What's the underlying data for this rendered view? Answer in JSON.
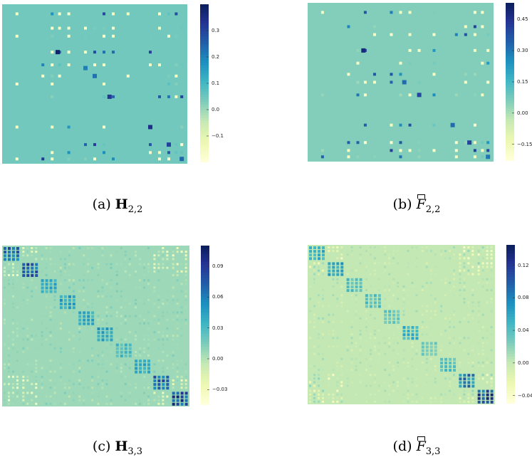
{
  "chart_data": [
    {
      "type": "heatmap",
      "panel": "a",
      "caption": {
        "prefix": "(a)",
        "symbol": "H",
        "subscript": "2,2",
        "hat": false
      },
      "colorbar_ticks": [
        0.3,
        0.2,
        0.1,
        0.0,
        -0.1
      ],
      "colorbar_tick_labels": [
        "0.3",
        "0.2",
        "0.1",
        "0.0",
        "−0.1"
      ],
      "colorbar_range": [
        -0.2,
        0.4
      ],
      "background_value": 0.04,
      "colormap": [
        "#ffffd9",
        "#edf8b1",
        "#c7e9b4",
        "#7fcdbb",
        "#41b6c4",
        "#1d91c0",
        "#225ea8",
        "#253494",
        "#081d58"
      ]
    },
    {
      "type": "heatmap",
      "panel": "b",
      "caption": {
        "prefix": "(b)",
        "symbol": "F",
        "subscript": "2,2",
        "hat": true
      },
      "colorbar_ticks": [
        0.45,
        0.3,
        0.15,
        0.0,
        -0.15
      ],
      "colorbar_tick_labels": [
        "0.45",
        "0.30",
        "0.15",
        "0.00",
        "−0.15"
      ],
      "colorbar_range": [
        -0.23,
        0.53
      ],
      "background_value": 0.05,
      "colormap": [
        "#ffffd9",
        "#edf8b1",
        "#c7e9b4",
        "#7fcdbb",
        "#41b6c4",
        "#1d91c0",
        "#225ea8",
        "#253494",
        "#081d58"
      ]
    },
    {
      "type": "heatmap",
      "panel": "c",
      "caption": {
        "prefix": "(c)",
        "symbol": "H",
        "subscript": "3,3",
        "hat": false
      },
      "colorbar_ticks": [
        0.09,
        0.06,
        0.03,
        0.0,
        -0.03
      ],
      "colorbar_tick_labels": [
        "0.09",
        "0.06",
        "0.03",
        "0.00",
        "−0.03"
      ],
      "colorbar_range": [
        -0.045,
        0.11
      ],
      "background_value": 0.005,
      "colormap": [
        "#ffffd9",
        "#edf8b1",
        "#c7e9b4",
        "#7fcdbb",
        "#41b6c4",
        "#1d91c0",
        "#225ea8",
        "#253494",
        "#081d58"
      ]
    },
    {
      "type": "heatmap",
      "panel": "d",
      "caption": {
        "prefix": "(d)",
        "symbol": "F",
        "subscript": "3,3",
        "hat": true
      },
      "colorbar_ticks": [
        0.12,
        0.08,
        0.04,
        0.0,
        -0.04
      ],
      "colorbar_tick_labels": [
        "0.12",
        "0.08",
        "0.04",
        "0.00",
        "−0.04"
      ],
      "colorbar_range": [
        -0.05,
        0.145
      ],
      "background_value": 0.0,
      "colormap": [
        "#ffffd9",
        "#edf8b1",
        "#c7e9b4",
        "#7fcdbb",
        "#41b6c4",
        "#1d91c0",
        "#225ea8",
        "#253494",
        "#081d58"
      ]
    }
  ]
}
